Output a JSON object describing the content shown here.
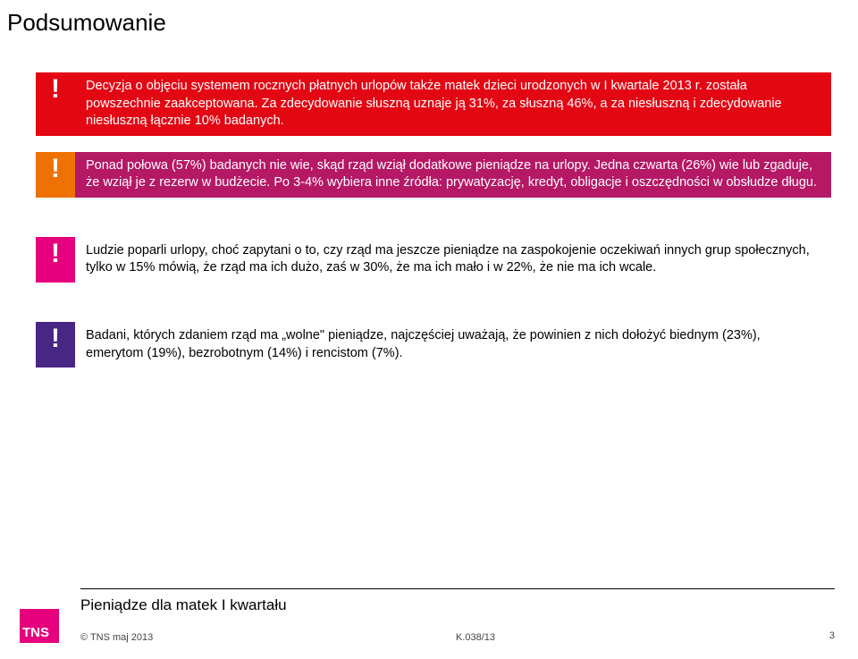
{
  "page": {
    "title": "Podsumowanie",
    "footer_title": "Pieniądze dla matek I kwartału",
    "copyright": "© TNS  maj 2013",
    "doc_ref": "K.038/13",
    "page_number": "3",
    "logo_text": "TNS"
  },
  "colors": {
    "badge1": "#e30613",
    "text1": "#ffffff",
    "fg1": "#000000",
    "badge2": "#ee7203",
    "text2": "#b51865",
    "badge3": "#e6007e",
    "fg3": "#000000",
    "badge4": "#482683",
    "fg4": "#000000",
    "logo_bg": "#e6007e"
  },
  "blocks": {
    "b1": {
      "mark": "!",
      "text": "Decyzja o objęciu systemem rocznych płatnych urlopów także matek dzieci urodzonych w I kwartale 2013 r. została powszechnie zaakceptowana. Za zdecydowanie słuszną uznaje ją 31%, za słuszną 46%, a za niesłuszną i zdecydowanie niesłuszną łącznie 10% badanych."
    },
    "b2": {
      "mark": "!",
      "text": "Ponad połowa (57%) badanych nie wie, skąd rząd wziął dodatkowe pieniądze na urlopy. Jedna czwarta (26%) wie lub zgaduje, że wziął je z rezerw w budżecie. Po 3-4% wybiera inne źródła: prywatyzację, kredyt, obligacje  i oszczędności w obsłudze długu."
    },
    "b3": {
      "mark": "!",
      "text": "Ludzie poparli urlopy, choć zapytani o to, czy rząd ma jeszcze pieniądze na zaspokojenie oczekiwań innych grup społecznych, tylko w 15% mówią, że rząd ma ich dużo, zaś w 30%, że ma ich mało i w 22%, że nie ma ich wcale."
    },
    "b4": {
      "mark": "!",
      "text": "Badani, których zdaniem rząd ma „wolne\" pieniądze, najczęściej uważają, że powinien z nich dołożyć biednym (23%), emerytom (19%), bezrobotnym (14%) i rencistom (7%)."
    }
  }
}
